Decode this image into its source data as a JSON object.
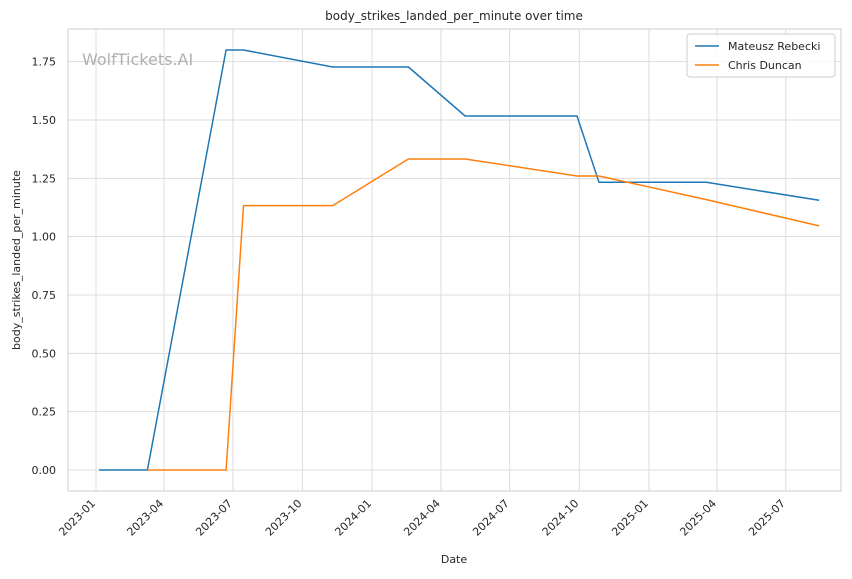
{
  "chart_data": {
    "type": "line",
    "title": "body_strikes_landed_per_minute over time",
    "xlabel": "Date",
    "ylabel": "body_strikes_landed_per_minute",
    "watermark": "WolfTickets.AI",
    "x_ticks": [
      "2023-01",
      "2023-04",
      "2023-07",
      "2023-10",
      "2024-01",
      "2024-04",
      "2024-07",
      "2024-10",
      "2025-01",
      "2025-04",
      "2025-07"
    ],
    "y_ticks": [
      "0.00",
      "0.25",
      "0.50",
      "0.75",
      "1.00",
      "1.25",
      "1.50",
      "1.75"
    ],
    "xlim": [
      "2022-11-25",
      "2025-09-12"
    ],
    "ylim": [
      -0.09,
      1.89
    ],
    "grid": true,
    "legend": "top-right",
    "series": [
      {
        "name": "Mateusz Rebecki",
        "color": "#1f77b4",
        "points": [
          [
            "2023-01-05",
            0.0
          ],
          [
            "2023-03-10",
            0.0
          ],
          [
            "2023-06-22",
            1.8
          ],
          [
            "2023-07-15",
            1.8
          ],
          [
            "2023-11-10",
            1.727
          ],
          [
            "2024-02-18",
            1.727
          ],
          [
            "2024-05-03",
            1.517
          ],
          [
            "2024-09-28",
            1.517
          ],
          [
            "2024-10-27",
            1.233
          ],
          [
            "2025-03-18",
            1.233
          ],
          [
            "2025-08-14",
            1.156
          ]
        ]
      },
      {
        "name": "Chris Duncan",
        "color": "#ff7f0e",
        "points": [
          [
            "2023-03-10",
            0.0
          ],
          [
            "2023-06-22",
            0.0
          ],
          [
            "2023-07-15",
            1.133
          ],
          [
            "2023-11-10",
            1.133
          ],
          [
            "2024-02-18",
            1.333
          ],
          [
            "2024-05-03",
            1.333
          ],
          [
            "2024-09-28",
            1.26
          ],
          [
            "2024-10-27",
            1.26
          ],
          [
            "2025-03-18",
            1.159
          ],
          [
            "2025-08-14",
            1.046
          ]
        ]
      }
    ]
  }
}
